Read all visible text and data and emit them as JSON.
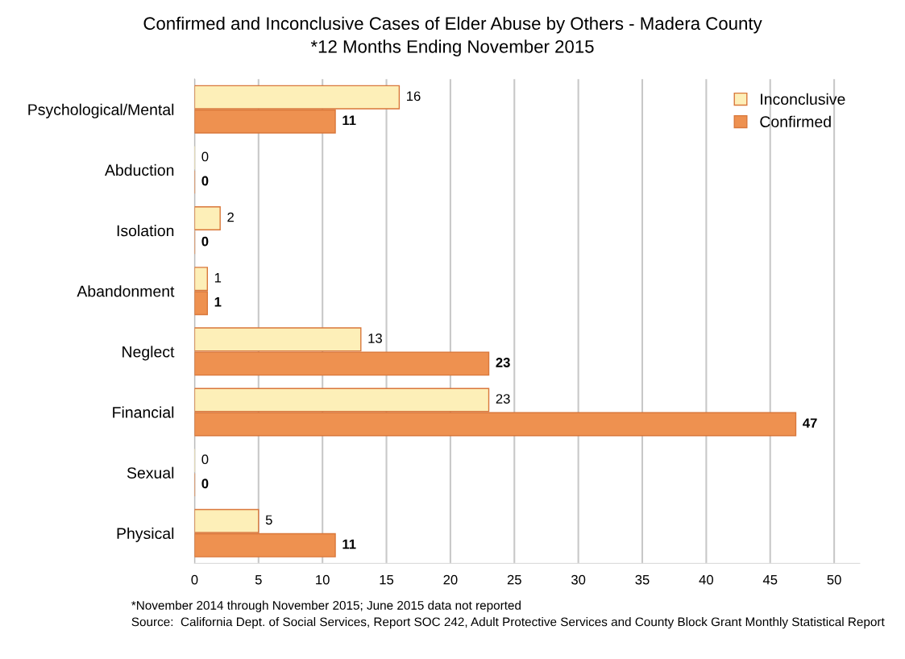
{
  "chart_data": {
    "type": "bar",
    "orientation": "horizontal",
    "title": "Confirmed and Inconclusive Cases of Elder Abuse by Others - Madera County",
    "subtitle": "*12 Months Ending November 2015",
    "categories": [
      "Psychological/Mental",
      "Abduction",
      "Isolation",
      "Abandonment",
      "Neglect",
      "Financial",
      "Sexual",
      "Physical"
    ],
    "series": [
      {
        "name": "Inconclusive",
        "color": "#fdefb8",
        "values": [
          16,
          0,
          2,
          1,
          13,
          23,
          0,
          5
        ]
      },
      {
        "name": "Confirmed",
        "color": "#ee9150",
        "values": [
          11,
          0,
          0,
          1,
          23,
          47,
          0,
          11
        ]
      }
    ],
    "xlim": [
      0,
      52
    ],
    "xticks": [
      0,
      5,
      10,
      15,
      20,
      25,
      30,
      35,
      40,
      45,
      50
    ],
    "grid": "x",
    "legend": "top right",
    "data_labels": true,
    "annotations": [
      "*November 2014 through November 2015; June 2015 data not reported",
      "Source:  California Dept. of Social Services, Report SOC 242, Adult Protective Services and County Block Grant Monthly Statistical Report"
    ]
  }
}
